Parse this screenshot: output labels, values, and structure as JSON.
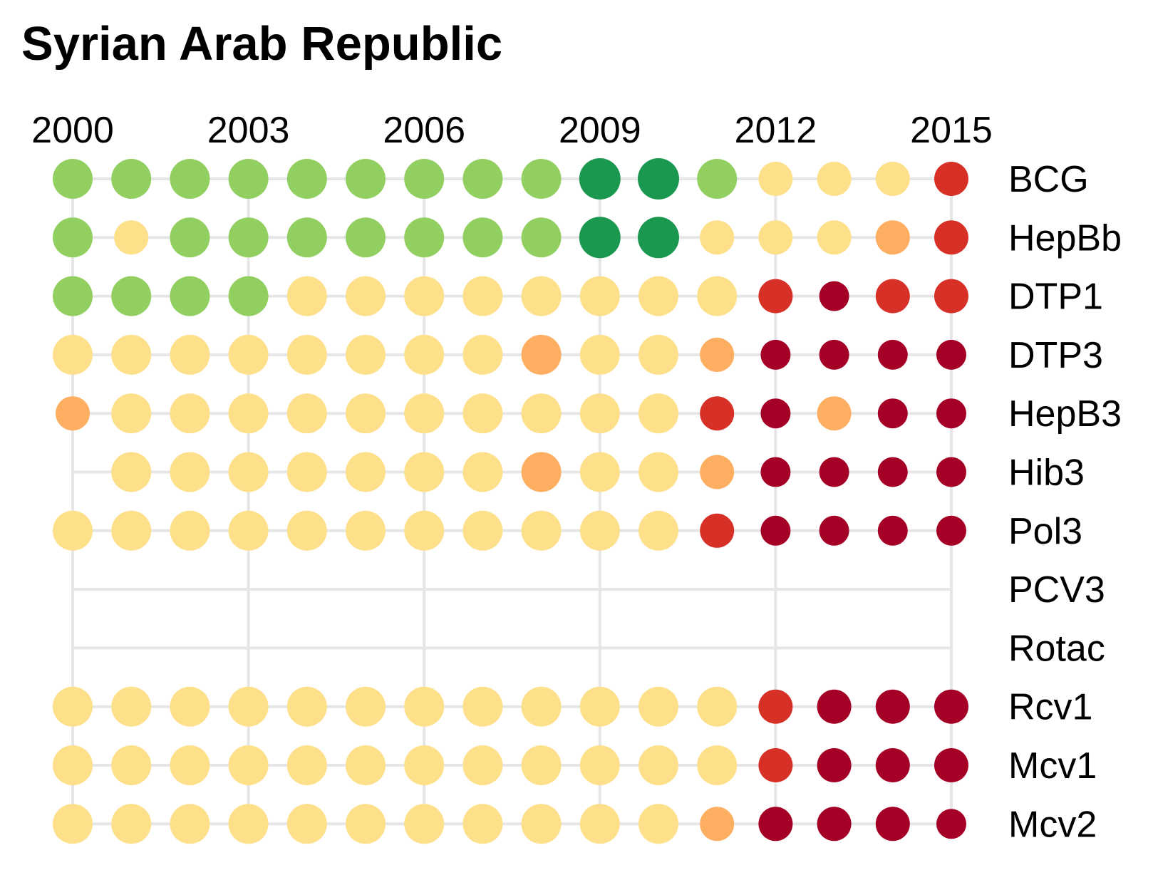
{
  "chart_data": {
    "type": "scatter",
    "title": "Syrian Arab Republic",
    "x_tick_labels": [
      "2000",
      "2003",
      "2006",
      "2009",
      "2012",
      "2015"
    ],
    "x_ticks": [
      2000,
      2003,
      2006,
      2009,
      2012,
      2015
    ],
    "years": [
      2000,
      2001,
      2002,
      2003,
      2004,
      2005,
      2006,
      2007,
      2008,
      2009,
      2010,
      2011,
      2012,
      2013,
      2014,
      2015
    ],
    "grid": true,
    "colors": {
      "dark_green": "#1a9850",
      "light_green": "#91cf60",
      "pale_yellow": "#fee08b",
      "orange": "#fdae61",
      "red": "#d73027",
      "dark_red": "#a50026",
      "grid": "#e6e6e6"
    },
    "series": [
      {
        "name": "BCG",
        "start": 2000,
        "end": 2015,
        "points": [
          [
            "light_green",
            "L"
          ],
          [
            "light_green",
            "L"
          ],
          [
            "light_green",
            "L"
          ],
          [
            "light_green",
            "L"
          ],
          [
            "light_green",
            "L"
          ],
          [
            "light_green",
            "L"
          ],
          [
            "light_green",
            "L"
          ],
          [
            "light_green",
            "L"
          ],
          [
            "light_green",
            "L"
          ],
          [
            "dark_green",
            "XL"
          ],
          [
            "dark_green",
            "XL"
          ],
          [
            "light_green",
            "L"
          ],
          [
            "pale_yellow",
            "M"
          ],
          [
            "pale_yellow",
            "M"
          ],
          [
            "pale_yellow",
            "M"
          ],
          [
            "red",
            "M"
          ]
        ]
      },
      {
        "name": "HepBb",
        "start": 2000,
        "end": 2015,
        "points": [
          [
            "light_green",
            "L"
          ],
          [
            "pale_yellow",
            "M"
          ],
          [
            "light_green",
            "L"
          ],
          [
            "light_green",
            "L"
          ],
          [
            "light_green",
            "L"
          ],
          [
            "light_green",
            "L"
          ],
          [
            "light_green",
            "L"
          ],
          [
            "light_green",
            "L"
          ],
          [
            "light_green",
            "L"
          ],
          [
            "dark_green",
            "XL"
          ],
          [
            "dark_green",
            "XL"
          ],
          [
            "pale_yellow",
            "M"
          ],
          [
            "pale_yellow",
            "M"
          ],
          [
            "pale_yellow",
            "M"
          ],
          [
            "orange",
            "M"
          ],
          [
            "red",
            "M"
          ]
        ]
      },
      {
        "name": "DTP1",
        "start": 2000,
        "end": 2015,
        "points": [
          [
            "light_green",
            "L"
          ],
          [
            "light_green",
            "L"
          ],
          [
            "light_green",
            "L"
          ],
          [
            "light_green",
            "L"
          ],
          [
            "pale_yellow",
            "L"
          ],
          [
            "pale_yellow",
            "L"
          ],
          [
            "pale_yellow",
            "L"
          ],
          [
            "pale_yellow",
            "L"
          ],
          [
            "pale_yellow",
            "L"
          ],
          [
            "pale_yellow",
            "L"
          ],
          [
            "pale_yellow",
            "L"
          ],
          [
            "pale_yellow",
            "L"
          ],
          [
            "red",
            "M"
          ],
          [
            "dark_red",
            "S"
          ],
          [
            "red",
            "M"
          ],
          [
            "red",
            "M"
          ]
        ]
      },
      {
        "name": "DTP3",
        "start": 2000,
        "end": 2015,
        "points": [
          [
            "pale_yellow",
            "L"
          ],
          [
            "pale_yellow",
            "L"
          ],
          [
            "pale_yellow",
            "L"
          ],
          [
            "pale_yellow",
            "L"
          ],
          [
            "pale_yellow",
            "L"
          ],
          [
            "pale_yellow",
            "L"
          ],
          [
            "pale_yellow",
            "L"
          ],
          [
            "pale_yellow",
            "L"
          ],
          [
            "orange",
            "L"
          ],
          [
            "pale_yellow",
            "L"
          ],
          [
            "pale_yellow",
            "L"
          ],
          [
            "orange",
            "M"
          ],
          [
            "dark_red",
            "S"
          ],
          [
            "dark_red",
            "S"
          ],
          [
            "dark_red",
            "S"
          ],
          [
            "dark_red",
            "S"
          ]
        ]
      },
      {
        "name": "HepB3",
        "start": 2000,
        "end": 2015,
        "points": [
          [
            "orange",
            "M"
          ],
          [
            "pale_yellow",
            "L"
          ],
          [
            "pale_yellow",
            "L"
          ],
          [
            "pale_yellow",
            "L"
          ],
          [
            "pale_yellow",
            "L"
          ],
          [
            "pale_yellow",
            "L"
          ],
          [
            "pale_yellow",
            "L"
          ],
          [
            "pale_yellow",
            "L"
          ],
          [
            "pale_yellow",
            "L"
          ],
          [
            "pale_yellow",
            "L"
          ],
          [
            "pale_yellow",
            "L"
          ],
          [
            "red",
            "M"
          ],
          [
            "dark_red",
            "S"
          ],
          [
            "orange",
            "M"
          ],
          [
            "dark_red",
            "S"
          ],
          [
            "dark_red",
            "S"
          ]
        ]
      },
      {
        "name": "Hib3",
        "start": 2000,
        "end": 2015,
        "points": [
          null,
          [
            "pale_yellow",
            "L"
          ],
          [
            "pale_yellow",
            "L"
          ],
          [
            "pale_yellow",
            "L"
          ],
          [
            "pale_yellow",
            "L"
          ],
          [
            "pale_yellow",
            "L"
          ],
          [
            "pale_yellow",
            "L"
          ],
          [
            "pale_yellow",
            "L"
          ],
          [
            "orange",
            "L"
          ],
          [
            "pale_yellow",
            "L"
          ],
          [
            "pale_yellow",
            "L"
          ],
          [
            "orange",
            "M"
          ],
          [
            "dark_red",
            "S"
          ],
          [
            "dark_red",
            "S"
          ],
          [
            "dark_red",
            "S"
          ],
          [
            "dark_red",
            "S"
          ]
        ]
      },
      {
        "name": "Pol3",
        "start": 2000,
        "end": 2015,
        "points": [
          [
            "pale_yellow",
            "L"
          ],
          [
            "pale_yellow",
            "L"
          ],
          [
            "pale_yellow",
            "L"
          ],
          [
            "pale_yellow",
            "L"
          ],
          [
            "pale_yellow",
            "L"
          ],
          [
            "pale_yellow",
            "L"
          ],
          [
            "pale_yellow",
            "L"
          ],
          [
            "pale_yellow",
            "L"
          ],
          [
            "pale_yellow",
            "L"
          ],
          [
            "pale_yellow",
            "L"
          ],
          [
            "pale_yellow",
            "L"
          ],
          [
            "red",
            "M"
          ],
          [
            "dark_red",
            "S"
          ],
          [
            "dark_red",
            "S"
          ],
          [
            "dark_red",
            "S"
          ],
          [
            "dark_red",
            "S"
          ]
        ]
      },
      {
        "name": "PCV3",
        "start": 2000,
        "end": 2015,
        "points": [
          null,
          null,
          null,
          null,
          null,
          null,
          null,
          null,
          null,
          null,
          null,
          null,
          null,
          null,
          null,
          null
        ]
      },
      {
        "name": "Rotac",
        "start": 2000,
        "end": 2015,
        "points": [
          null,
          null,
          null,
          null,
          null,
          null,
          null,
          null,
          null,
          null,
          null,
          null,
          null,
          null,
          null,
          null
        ]
      },
      {
        "name": "Rcv1",
        "start": 2000,
        "end": 2015,
        "points": [
          [
            "pale_yellow",
            "L"
          ],
          [
            "pale_yellow",
            "L"
          ],
          [
            "pale_yellow",
            "L"
          ],
          [
            "pale_yellow",
            "L"
          ],
          [
            "pale_yellow",
            "L"
          ],
          [
            "pale_yellow",
            "L"
          ],
          [
            "pale_yellow",
            "L"
          ],
          [
            "pale_yellow",
            "L"
          ],
          [
            "pale_yellow",
            "L"
          ],
          [
            "pale_yellow",
            "L"
          ],
          [
            "pale_yellow",
            "L"
          ],
          [
            "pale_yellow",
            "L"
          ],
          [
            "red",
            "M"
          ],
          [
            "dark_red",
            "M"
          ],
          [
            "dark_red",
            "M"
          ],
          [
            "dark_red",
            "M"
          ]
        ]
      },
      {
        "name": "Mcv1",
        "start": 2000,
        "end": 2015,
        "points": [
          [
            "pale_yellow",
            "L"
          ],
          [
            "pale_yellow",
            "L"
          ],
          [
            "pale_yellow",
            "L"
          ],
          [
            "pale_yellow",
            "L"
          ],
          [
            "pale_yellow",
            "L"
          ],
          [
            "pale_yellow",
            "L"
          ],
          [
            "pale_yellow",
            "L"
          ],
          [
            "pale_yellow",
            "L"
          ],
          [
            "pale_yellow",
            "L"
          ],
          [
            "pale_yellow",
            "L"
          ],
          [
            "pale_yellow",
            "L"
          ],
          [
            "pale_yellow",
            "L"
          ],
          [
            "red",
            "M"
          ],
          [
            "dark_red",
            "M"
          ],
          [
            "dark_red",
            "M"
          ],
          [
            "dark_red",
            "M"
          ]
        ]
      },
      {
        "name": "Mcv2",
        "start": 2000,
        "end": 2015,
        "points": [
          [
            "pale_yellow",
            "L"
          ],
          [
            "pale_yellow",
            "L"
          ],
          [
            "pale_yellow",
            "L"
          ],
          [
            "pale_yellow",
            "L"
          ],
          [
            "pale_yellow",
            "L"
          ],
          [
            "pale_yellow",
            "L"
          ],
          [
            "pale_yellow",
            "L"
          ],
          [
            "pale_yellow",
            "L"
          ],
          [
            "pale_yellow",
            "L"
          ],
          [
            "pale_yellow",
            "L"
          ],
          [
            "pale_yellow",
            "L"
          ],
          [
            "orange",
            "M"
          ],
          [
            "dark_red",
            "M"
          ],
          [
            "dark_red",
            "M"
          ],
          [
            "dark_red",
            "M"
          ],
          [
            "dark_red",
            "S"
          ]
        ]
      }
    ]
  }
}
